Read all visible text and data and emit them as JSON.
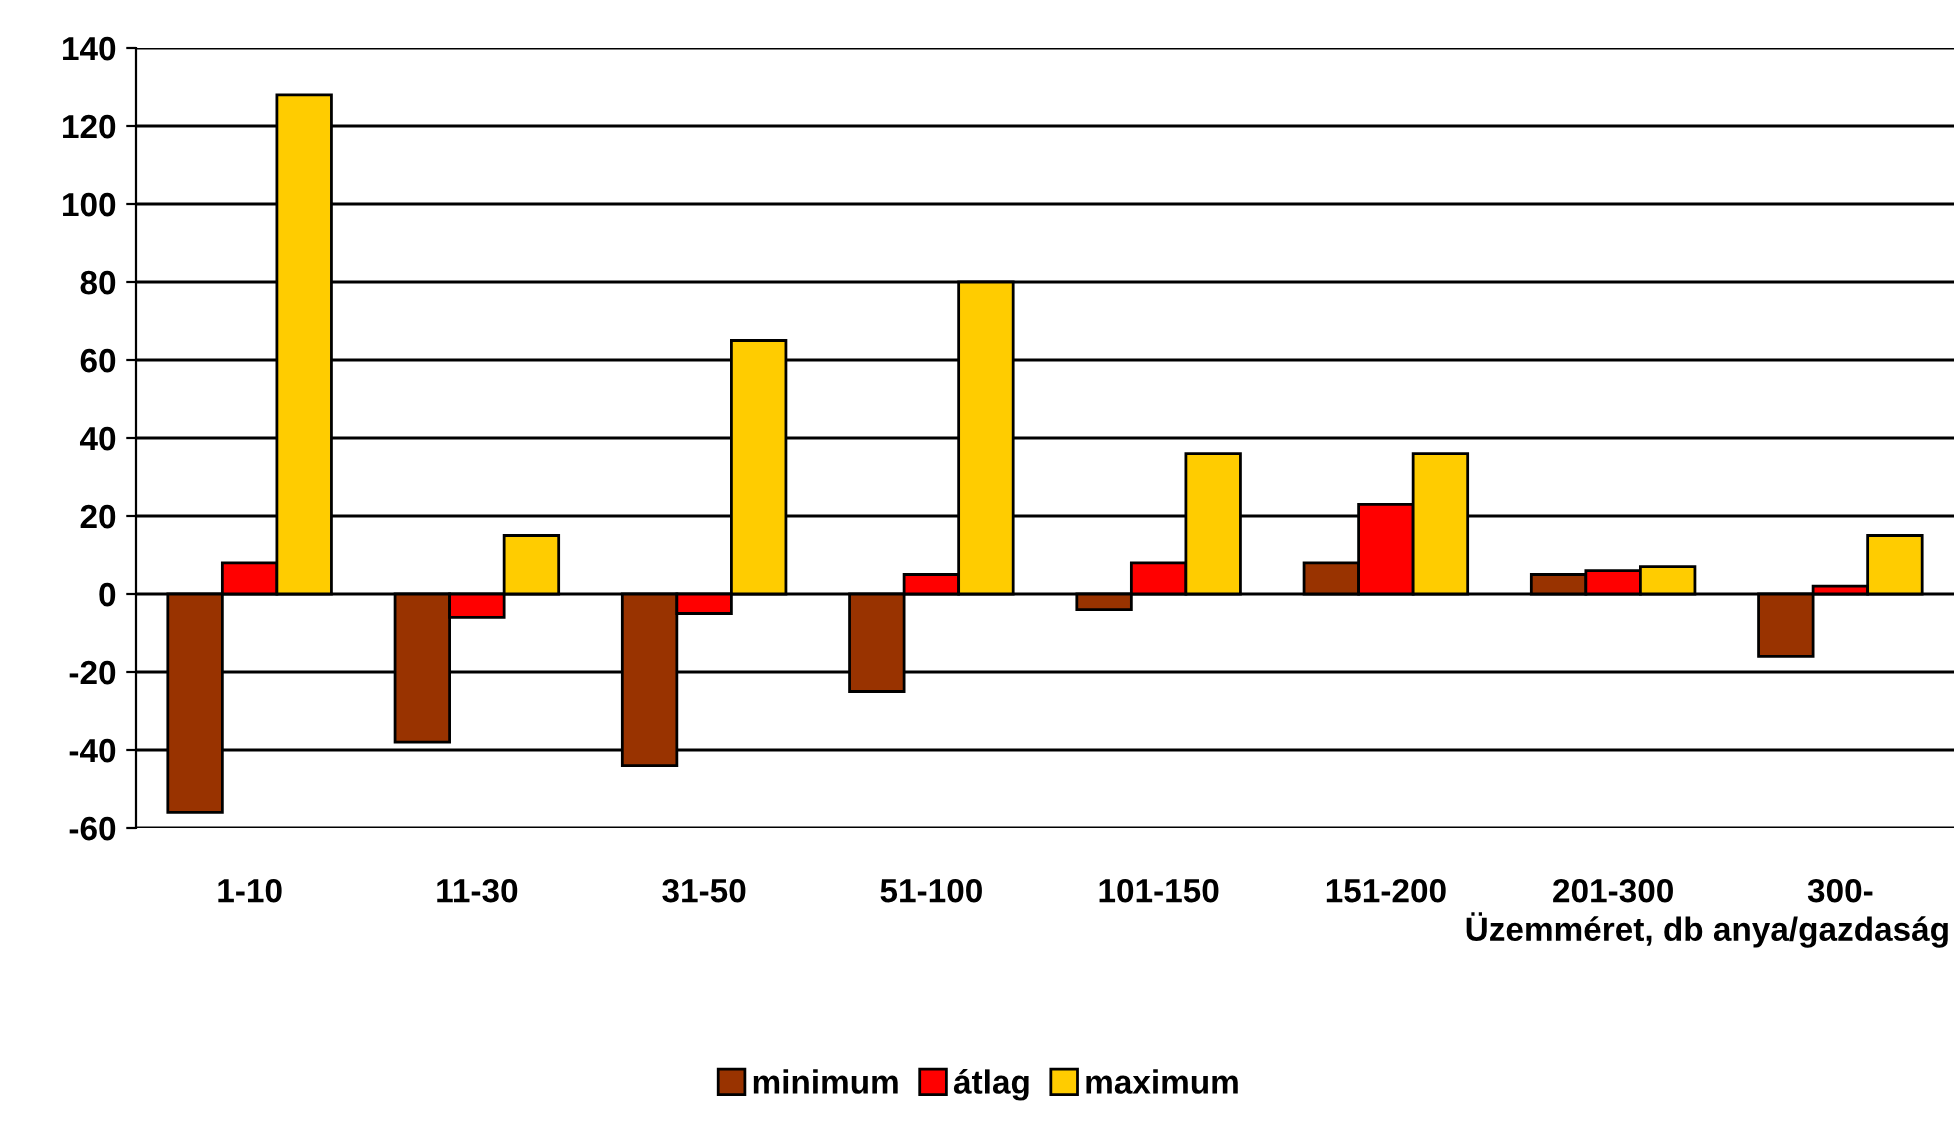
{
  "chart_data": {
    "type": "bar",
    "xlabel": "Üzemméret, db anya/gazdaság",
    "categories": [
      "1-10",
      "11-30",
      "31-50",
      "51-100",
      "101-150",
      "151-200",
      "201-300",
      "300-"
    ],
    "series": [
      {
        "name": "minimum",
        "color": "#993300",
        "values": [
          -56,
          -38,
          -44,
          -25,
          -4,
          8,
          5,
          -16
        ]
      },
      {
        "name": "átlag",
        "color": "#ff0000",
        "values": [
          8,
          -6,
          -5,
          5,
          8,
          23,
          6,
          2
        ]
      },
      {
        "name": "maximum",
        "color": "#ffcc00",
        "values": [
          128,
          15,
          65,
          80,
          36,
          36,
          7,
          15
        ]
      }
    ],
    "ylim": [
      -60,
      140
    ],
    "yticks": [
      -60,
      -40,
      -20,
      0,
      20,
      40,
      60,
      80,
      100,
      120,
      140
    ],
    "grid": "y",
    "legend": "bottom"
  }
}
